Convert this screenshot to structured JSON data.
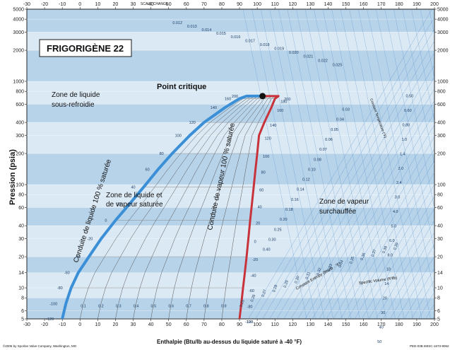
{
  "chart_data": {
    "type": "line",
    "title": "FRIGORIGÈNE 22",
    "xlabel": "Enthalpie (Btu/lb au-dessus du liquide saturé à -40 °F)",
    "ylabel": "Pression (psia)",
    "x_top_scale_label": "SCALE CHANGE",
    "xlim": [
      -30,
      200
    ],
    "y_scale": "log",
    "ylim": [
      5,
      5000
    ],
    "x_ticks_bottom": [
      "-30",
      "-20",
      "-10",
      "0",
      "10",
      "20",
      "30",
      "40",
      "50",
      "60",
      "70",
      "80",
      "90",
      "100",
      "110",
      "120",
      "130",
      "140",
      "150",
      "160",
      "170",
      "180",
      "190",
      "200"
    ],
    "x_ticks_top": [
      "-30",
      "-20",
      "-10",
      "0",
      "10",
      "20",
      "30",
      "40",
      "50",
      "60",
      "70",
      "80",
      "90",
      "100",
      "110",
      "120",
      "130",
      "140",
      "150",
      "160",
      "170",
      "180",
      "190",
      "200"
    ],
    "y_ticks_left": [
      "5000",
      "4000",
      "3000",
      "2000",
      "1000",
      "800",
      "600",
      "400",
      "300",
      "200",
      "100",
      "80",
      "60",
      "40",
      "30",
      "20",
      "14",
      "10",
      "8",
      "6",
      "5"
    ],
    "y_ticks_right": [
      "5000",
      "4000",
      "3000",
      "2000",
      "1000",
      "800",
      "600",
      "400",
      "300",
      "200",
      "100",
      "80",
      "60",
      "40",
      "30",
      "20",
      "14",
      "10",
      "8",
      "6",
      "5"
    ],
    "isotherm_labels_left": [
      "200",
      "160",
      "140",
      "120",
      "100",
      "80",
      "60",
      "40",
      "20",
      "0",
      "-20",
      "-40",
      "-60",
      "-80",
      "-100",
      "-120"
    ],
    "isotherm_labels_right": [
      "200",
      "180",
      "160",
      "140",
      "120",
      "100",
      "80",
      "60",
      "40",
      "20",
      "0",
      "-20",
      "-40",
      "-60",
      "-80",
      "-100",
      "-120"
    ],
    "quality_labels": [
      "0.1",
      "0.2",
      "0.3",
      "0.4",
      "0.5",
      "0.6",
      "0.7",
      "0.8",
      "0.9"
    ],
    "entropy_labels": [
      "0.25",
      "0.26",
      "0.27",
      "0.28",
      "0.29",
      "0.30",
      "0.31",
      "0.32",
      "0.33",
      "0.34",
      "0.35",
      "0.36",
      "0.37",
      "0.38",
      "0.39"
    ],
    "volume_labels": [
      "0.012",
      "0.013",
      "0.014",
      "0.015",
      "0.016",
      "0.017",
      "0.018",
      "0.019",
      "0.020",
      "0.021",
      "0.022",
      "0.025",
      "0.03",
      "0.04",
      "0.05",
      "0.06",
      "0.07",
      "0.08",
      "0.10",
      "0.12",
      "0.14",
      "0.16",
      "0.18",
      "0.20",
      "0.25",
      "0.30",
      "0.40",
      "0.50",
      "0.60",
      "0.80",
      "1.0",
      "1.4",
      "2.0",
      "2.4",
      "3.0",
      "4.0",
      "5.0",
      "6.0",
      "8.0",
      "10",
      "14",
      "20",
      "30",
      "40",
      "50",
      "70"
    ],
    "annotations": {
      "critical_point": "Point critique",
      "subcooled_zone": [
        "Zone de liquide",
        "sous-refroidie"
      ],
      "wet_zone": [
        "Zone de liquide et",
        "de vapeur saturée"
      ],
      "superheat_zone": [
        "Zone de vapeur",
        "surchauffée"
      ],
      "liquid_line": "Conduite de liquide 100 % saturée",
      "vapor_line": "Conduite de vapeur 100 % saturée",
      "const_temp_label": "Constant Temperature (°F)",
      "const_entropy_label": "Constant Entropy (Btu/lb · °F)",
      "specific_volume_label": "Specific Volume (ft³/lb)",
      "copyright": "©2006 by Sporlan Valve Company, Washington, MO",
      "doc_code": "PED-03B IMISC-1673-9062"
    },
    "saturated_liquid": {
      "x": [
        -10,
        -8,
        -5,
        -1,
        5,
        12,
        20,
        28,
        36,
        44,
        52,
        62,
        70,
        82,
        90,
        94
      ],
      "y": [
        5,
        7,
        10,
        14,
        20,
        30,
        45,
        65,
        95,
        140,
        200,
        300,
        400,
        560,
        680,
        720
      ]
    },
    "saturated_vapor": {
      "x": [
        90,
        91,
        92,
        93,
        94,
        95,
        96,
        97,
        98,
        99,
        100,
        101,
        104,
        108,
        110,
        112
      ],
      "y": [
        5,
        7,
        10,
        14,
        20,
        30,
        45,
        65,
        95,
        140,
        200,
        300,
        400,
        560,
        680,
        720
      ]
    },
    "critical_point_xy": [
      103,
      720
    ]
  },
  "colors": {
    "liquid_line": "#3b8fd6",
    "vapor_line": "#c8323a",
    "band_light": "#dbe9f4",
    "band_dark": "#b7d3ea",
    "grid": "#4a86c2"
  }
}
